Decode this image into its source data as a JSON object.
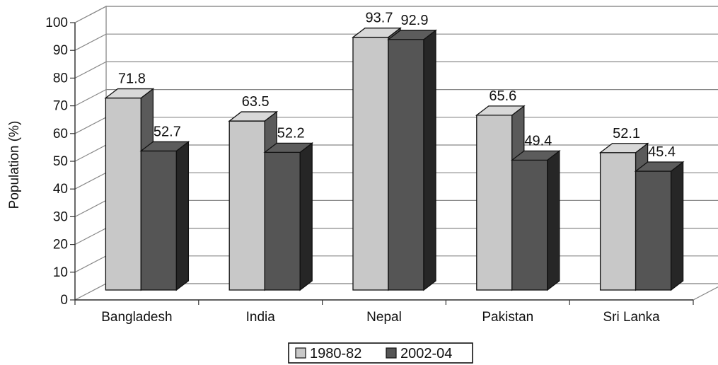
{
  "chart_data": {
    "type": "bar",
    "title": "",
    "xlabel": "",
    "ylabel": "Population (%)",
    "ylim": [
      0,
      100
    ],
    "yticks": [
      0,
      10,
      20,
      30,
      40,
      50,
      60,
      70,
      80,
      90,
      100
    ],
    "categories": [
      "Bangladesh",
      "India",
      "Nepal",
      "Pakistan",
      "Sri Lanka"
    ],
    "series": [
      {
        "name": "1980-82",
        "values": [
          71.8,
          63.5,
          93.7,
          65.6,
          52.1
        ],
        "color": "#c8c8c8",
        "data_labels": [
          "71.8",
          "63.5",
          "93.7",
          "65.6",
          "52.1"
        ]
      },
      {
        "name": "2002-04",
        "values": [
          52.7,
          52.2,
          92.9,
          49.4,
          45.4
        ],
        "color": "#555555",
        "data_labels": [
          "52.7",
          "52.2",
          "92.9",
          "49.4",
          "45.4"
        ]
      }
    ],
    "grid": true,
    "legend_position": "bottom",
    "style": "3d-clustered-bar"
  }
}
